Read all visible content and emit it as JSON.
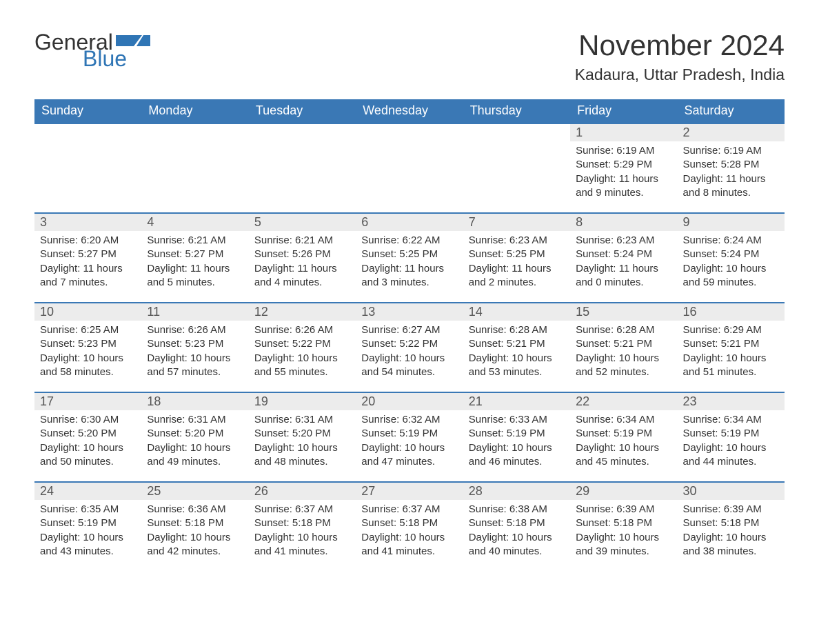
{
  "logo": {
    "text_general": "General",
    "text_blue": "Blue",
    "flag_color": "#2f75b5"
  },
  "header": {
    "month_title": "November 2024",
    "location": "Kadaura, Uttar Pradesh, India"
  },
  "colors": {
    "header_bg": "#3a78b5",
    "header_text": "#ffffff",
    "daynum_bg": "#ececec",
    "body_text": "#333333",
    "week_rule": "#3a78b5",
    "page_bg": "#ffffff"
  },
  "typography": {
    "month_title_fontsize": 42,
    "location_fontsize": 23,
    "dow_fontsize": 18,
    "daynum_fontsize": 18,
    "body_fontsize": 15,
    "logo_fontsize": 32,
    "font_family": "Arial"
  },
  "calendar": {
    "type": "table",
    "columns": [
      "Sunday",
      "Monday",
      "Tuesday",
      "Wednesday",
      "Thursday",
      "Friday",
      "Saturday"
    ],
    "weeks": [
      [
        null,
        null,
        null,
        null,
        null,
        {
          "n": "1",
          "sunrise": "6:19 AM",
          "sunset": "5:29 PM",
          "daylight": "11 hours and 9 minutes."
        },
        {
          "n": "2",
          "sunrise": "6:19 AM",
          "sunset": "5:28 PM",
          "daylight": "11 hours and 8 minutes."
        }
      ],
      [
        {
          "n": "3",
          "sunrise": "6:20 AM",
          "sunset": "5:27 PM",
          "daylight": "11 hours and 7 minutes."
        },
        {
          "n": "4",
          "sunrise": "6:21 AM",
          "sunset": "5:27 PM",
          "daylight": "11 hours and 5 minutes."
        },
        {
          "n": "5",
          "sunrise": "6:21 AM",
          "sunset": "5:26 PM",
          "daylight": "11 hours and 4 minutes."
        },
        {
          "n": "6",
          "sunrise": "6:22 AM",
          "sunset": "5:25 PM",
          "daylight": "11 hours and 3 minutes."
        },
        {
          "n": "7",
          "sunrise": "6:23 AM",
          "sunset": "5:25 PM",
          "daylight": "11 hours and 2 minutes."
        },
        {
          "n": "8",
          "sunrise": "6:23 AM",
          "sunset": "5:24 PM",
          "daylight": "11 hours and 0 minutes."
        },
        {
          "n": "9",
          "sunrise": "6:24 AM",
          "sunset": "5:24 PM",
          "daylight": "10 hours and 59 minutes."
        }
      ],
      [
        {
          "n": "10",
          "sunrise": "6:25 AM",
          "sunset": "5:23 PM",
          "daylight": "10 hours and 58 minutes."
        },
        {
          "n": "11",
          "sunrise": "6:26 AM",
          "sunset": "5:23 PM",
          "daylight": "10 hours and 57 minutes."
        },
        {
          "n": "12",
          "sunrise": "6:26 AM",
          "sunset": "5:22 PM",
          "daylight": "10 hours and 55 minutes."
        },
        {
          "n": "13",
          "sunrise": "6:27 AM",
          "sunset": "5:22 PM",
          "daylight": "10 hours and 54 minutes."
        },
        {
          "n": "14",
          "sunrise": "6:28 AM",
          "sunset": "5:21 PM",
          "daylight": "10 hours and 53 minutes."
        },
        {
          "n": "15",
          "sunrise": "6:28 AM",
          "sunset": "5:21 PM",
          "daylight": "10 hours and 52 minutes."
        },
        {
          "n": "16",
          "sunrise": "6:29 AM",
          "sunset": "5:21 PM",
          "daylight": "10 hours and 51 minutes."
        }
      ],
      [
        {
          "n": "17",
          "sunrise": "6:30 AM",
          "sunset": "5:20 PM",
          "daylight": "10 hours and 50 minutes."
        },
        {
          "n": "18",
          "sunrise": "6:31 AM",
          "sunset": "5:20 PM",
          "daylight": "10 hours and 49 minutes."
        },
        {
          "n": "19",
          "sunrise": "6:31 AM",
          "sunset": "5:20 PM",
          "daylight": "10 hours and 48 minutes."
        },
        {
          "n": "20",
          "sunrise": "6:32 AM",
          "sunset": "5:19 PM",
          "daylight": "10 hours and 47 minutes."
        },
        {
          "n": "21",
          "sunrise": "6:33 AM",
          "sunset": "5:19 PM",
          "daylight": "10 hours and 46 minutes."
        },
        {
          "n": "22",
          "sunrise": "6:34 AM",
          "sunset": "5:19 PM",
          "daylight": "10 hours and 45 minutes."
        },
        {
          "n": "23",
          "sunrise": "6:34 AM",
          "sunset": "5:19 PM",
          "daylight": "10 hours and 44 minutes."
        }
      ],
      [
        {
          "n": "24",
          "sunrise": "6:35 AM",
          "sunset": "5:19 PM",
          "daylight": "10 hours and 43 minutes."
        },
        {
          "n": "25",
          "sunrise": "6:36 AM",
          "sunset": "5:18 PM",
          "daylight": "10 hours and 42 minutes."
        },
        {
          "n": "26",
          "sunrise": "6:37 AM",
          "sunset": "5:18 PM",
          "daylight": "10 hours and 41 minutes."
        },
        {
          "n": "27",
          "sunrise": "6:37 AM",
          "sunset": "5:18 PM",
          "daylight": "10 hours and 41 minutes."
        },
        {
          "n": "28",
          "sunrise": "6:38 AM",
          "sunset": "5:18 PM",
          "daylight": "10 hours and 40 minutes."
        },
        {
          "n": "29",
          "sunrise": "6:39 AM",
          "sunset": "5:18 PM",
          "daylight": "10 hours and 39 minutes."
        },
        {
          "n": "30",
          "sunrise": "6:39 AM",
          "sunset": "5:18 PM",
          "daylight": "10 hours and 38 minutes."
        }
      ]
    ],
    "labels": {
      "sunrise_prefix": "Sunrise: ",
      "sunset_prefix": "Sunset: ",
      "daylight_prefix": "Daylight: "
    }
  }
}
